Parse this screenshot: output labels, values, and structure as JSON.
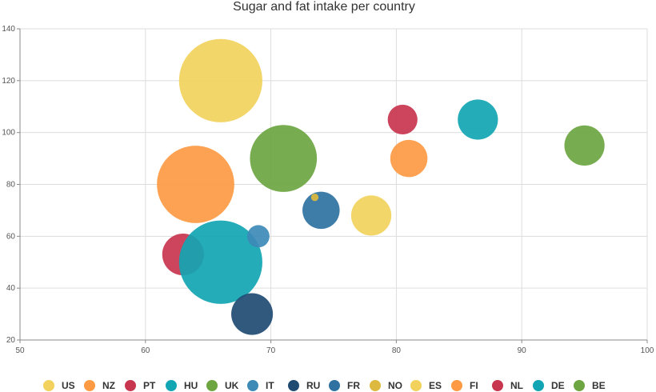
{
  "chart_data": {
    "type": "scatter",
    "subtype": "bubble",
    "title": "Sugar and fat intake per country",
    "xlim": [
      50,
      100
    ],
    "ylim": [
      20,
      140
    ],
    "xticks": [
      50,
      60,
      70,
      80,
      90,
      100
    ],
    "yticks": [
      20,
      40,
      60,
      80,
      100,
      120,
      140
    ],
    "grid": true,
    "legend_position": "bottom",
    "series": [
      {
        "name": "US",
        "color": "#f2d25c",
        "points": [
          {
            "x": 66,
            "y": 120,
            "z": 56
          }
        ]
      },
      {
        "name": "NZ",
        "color": "#fd9a43",
        "points": [
          {
            "x": 64,
            "y": 80,
            "z": 52
          }
        ]
      },
      {
        "name": "PT",
        "color": "#c8354f",
        "points": [
          {
            "x": 63,
            "y": 53,
            "z": 28
          }
        ]
      },
      {
        "name": "HU",
        "color": "#12a5b3",
        "points": [
          {
            "x": 66,
            "y": 50,
            "z": 56
          }
        ]
      },
      {
        "name": "UK",
        "color": "#6da541",
        "points": [
          {
            "x": 71,
            "y": 90,
            "z": 45
          }
        ]
      },
      {
        "name": "IT",
        "color": "#3d8ab7",
        "points": [
          {
            "x": 69,
            "y": 60,
            "z": 15
          }
        ]
      },
      {
        "name": "RU",
        "color": "#1f4b73",
        "points": [
          {
            "x": 68.5,
            "y": 30,
            "z": 28
          }
        ]
      },
      {
        "name": "FR",
        "color": "#2f72a2",
        "points": [
          {
            "x": 74,
            "y": 70,
            "z": 25
          }
        ]
      },
      {
        "name": "NO",
        "color": "#ddba3f",
        "points": [
          {
            "x": 73.5,
            "y": 75,
            "z": 5
          }
        ]
      },
      {
        "name": "ES",
        "color": "#f2d25c",
        "points": [
          {
            "x": 78,
            "y": 68,
            "z": 27
          }
        ]
      },
      {
        "name": "FI",
        "color": "#fd9a43",
        "points": [
          {
            "x": 81,
            "y": 90,
            "z": 25
          }
        ]
      },
      {
        "name": "NL",
        "color": "#c8354f",
        "points": [
          {
            "x": 80.5,
            "y": 105,
            "z": 20
          }
        ]
      },
      {
        "name": "DE",
        "color": "#12a5b3",
        "points": [
          {
            "x": 86.5,
            "y": 105,
            "z": 27
          }
        ]
      },
      {
        "name": "BE",
        "color": "#6da541",
        "points": [
          {
            "x": 95,
            "y": 95,
            "z": 27
          }
        ]
      }
    ]
  }
}
